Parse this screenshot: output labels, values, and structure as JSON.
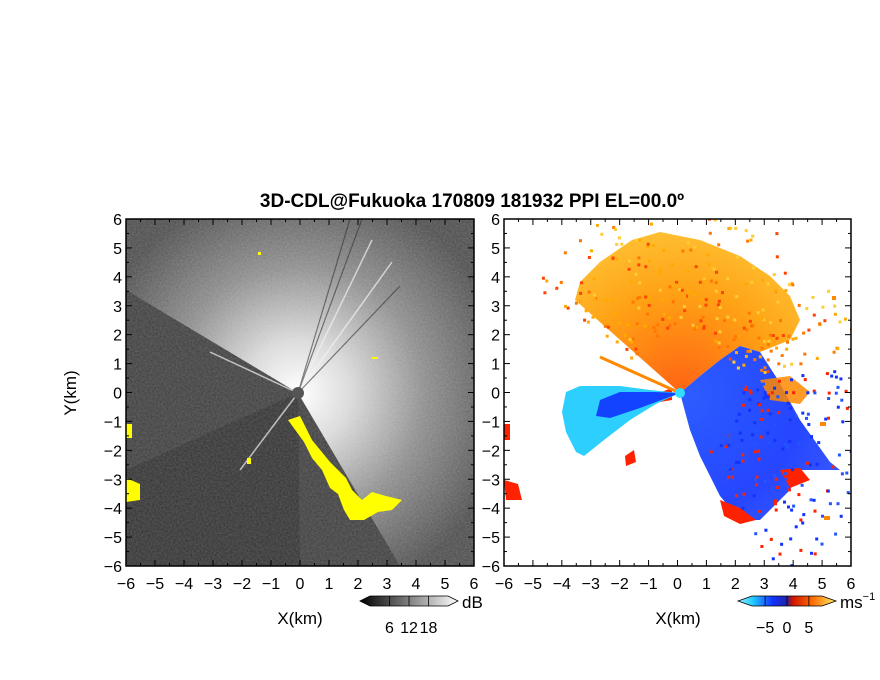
{
  "title": "3D-CDL@Fukuoka 170809 181932 PPI EL=00.0º",
  "colors": {
    "overlay_yellow": "#ffff00",
    "velocity_negative": "#0033ff",
    "velocity_light_negative": "#33ddff",
    "velocity_positive": "#ff6600",
    "velocity_high_positive": "#ffcc00",
    "velocity_strong_positive": "#ff2200",
    "snr_bright": "#e8e8e8",
    "snr_dark": "#3a3a3a"
  },
  "chart_data": [
    {
      "type": "heatmap",
      "panel": "snr",
      "xlabel": "X(km)",
      "ylabel": "Y(km)",
      "xlim": [
        -6,
        6
      ],
      "ylim": [
        -6,
        6
      ],
      "x_ticks": [
        "-6",
        "-5",
        "-4",
        "-3",
        "-2",
        "-1",
        "0",
        "1",
        "2",
        "3",
        "4",
        "5",
        "6"
      ],
      "y_ticks": [
        "6",
        "5",
        "4",
        "3",
        "2",
        "1",
        "0",
        "-1",
        "-2",
        "-3",
        "-4",
        "-5",
        "-6"
      ],
      "colorbar": {
        "unit": "dB",
        "ticks": [
          "6",
          "12",
          "18"
        ],
        "range": [
          0,
          24
        ],
        "palette": "grayscale"
      }
    },
    {
      "type": "heatmap",
      "panel": "velocity",
      "xlabel": "X(km)",
      "ylabel": "",
      "xlim": [
        -6,
        6
      ],
      "ylim": [
        -6,
        6
      ],
      "x_ticks": [
        "-6",
        "-5",
        "-4",
        "-3",
        "-2",
        "-1",
        "0",
        "1",
        "2",
        "3",
        "4",
        "5",
        "6"
      ],
      "y_ticks": [
        "6",
        "5",
        "4",
        "3",
        "2",
        "1",
        "0",
        "-1",
        "-2",
        "-3",
        "-4",
        "-5",
        "-6"
      ],
      "colorbar": {
        "unit": "ms",
        "unit_exponent": "−1",
        "ticks": [
          "−5",
          "0",
          "5"
        ],
        "range": [
          -8,
          8
        ],
        "palette": "blue-cyan / orange-red"
      }
    }
  ]
}
